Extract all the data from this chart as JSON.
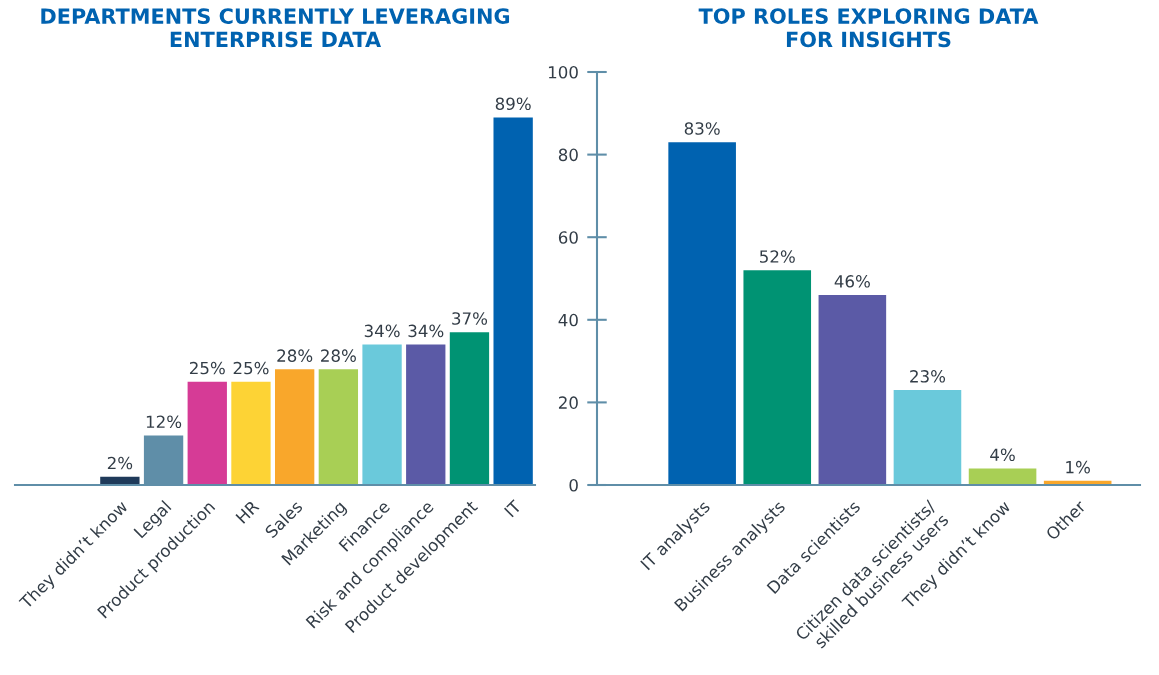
{
  "chart_data": [
    {
      "type": "bar",
      "title": "DEPARTMENTS CURRENTLY LEVERAGING\nENTERPRISE DATA",
      "categories": [
        "They didn’t know",
        "Legal",
        "Product production",
        "HR",
        "Sales",
        "Marketing",
        "Finance",
        "Risk and compliance",
        "Product development",
        "IT"
      ],
      "values": [
        2,
        12,
        25,
        25,
        28,
        28,
        34,
        34,
        37,
        89
      ],
      "colors": [
        "#1f3a5a",
        "#5f8ea8",
        "#d63b96",
        "#fdd335",
        "#f9a72b",
        "#a8cf55",
        "#6ac9db",
        "#5b5aa6",
        "#009373",
        "#0062b0"
      ],
      "value_labels": [
        "2%",
        "12%",
        "25%",
        "25%",
        "28%",
        "28%",
        "34%",
        "34%",
        "37%",
        "89%"
      ],
      "ylim": [
        0,
        100
      ],
      "tick_labels": "x",
      "grid": false,
      "legend": false
    },
    {
      "type": "bar",
      "title": "TOP ROLES EXPLORING DATA\nFOR INSIGHTS",
      "categories": [
        "IT analysts",
        "Business analysts",
        "Data scientists",
        "Citizen data scientists/\nskilled business users",
        "They didn’t know",
        "Other"
      ],
      "values": [
        83,
        52,
        46,
        23,
        4,
        1
      ],
      "colors": [
        "#0062b0",
        "#009373",
        "#5b5aa6",
        "#6ac9db",
        "#a8cf55",
        "#f9a72b"
      ],
      "value_labels": [
        "83%",
        "52%",
        "46%",
        "23%",
        "4%",
        "1%"
      ],
      "ylim": [
        0,
        100
      ],
      "yticks": [
        0,
        20,
        40,
        60,
        80,
        100
      ],
      "grid": false,
      "legend": false
    }
  ]
}
